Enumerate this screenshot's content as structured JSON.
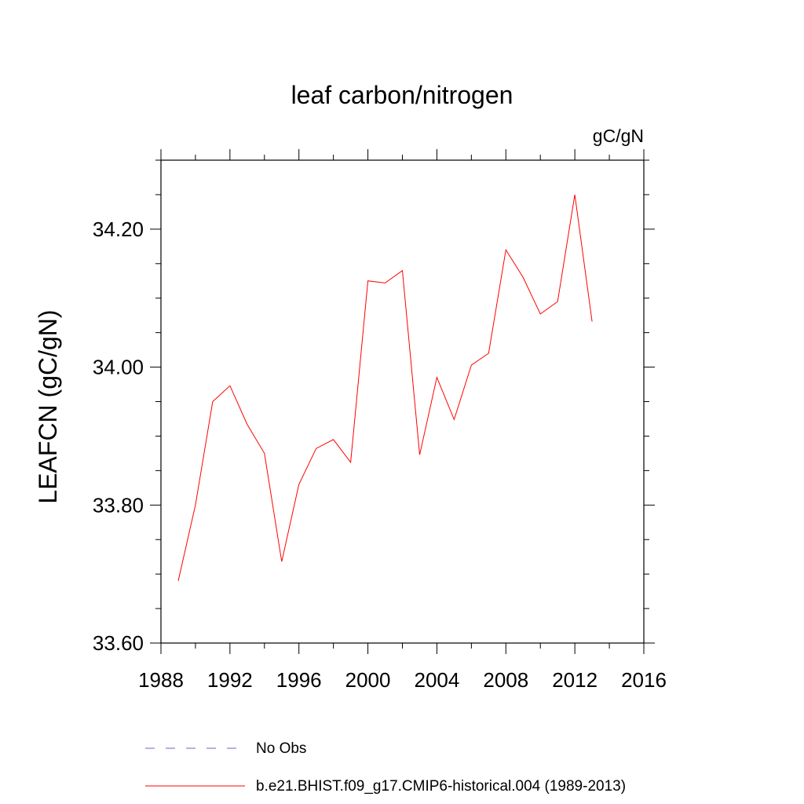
{
  "chart_data": {
    "type": "line",
    "title": "leaf carbon/nitrogen",
    "units_label": "gC/gN",
    "ylabel": "LEAFCN  (gC/gN)",
    "xlabel": "",
    "xlim": [
      1988,
      2016
    ],
    "ylim": [
      33.6,
      34.3
    ],
    "x_ticks": [
      1988,
      1992,
      1996,
      2000,
      2004,
      2008,
      2012,
      2016
    ],
    "x_tick_labels": [
      "1988",
      "1992",
      "1996",
      "2000",
      "2004",
      "2008",
      "2012",
      "2016"
    ],
    "y_ticks": [
      33.6,
      33.8,
      34.0,
      34.2
    ],
    "y_tick_labels": [
      "33.60",
      "33.80",
      "34.00",
      "34.20"
    ],
    "grid": false,
    "series": [
      {
        "name": "b.e21.BHIST.f09_g17.CMIP6-historical.004 (1989-2013)",
        "color": "#ff0000",
        "style": "solid",
        "x": [
          1989,
          1990,
          1991,
          1992,
          1993,
          1994,
          1995,
          1996,
          1997,
          1998,
          1999,
          2000,
          2001,
          2002,
          2003,
          2004,
          2005,
          2006,
          2007,
          2008,
          2009,
          2010,
          2011,
          2012,
          2013
        ],
        "values": [
          33.69,
          33.8,
          33.95,
          33.973,
          33.917,
          33.875,
          33.718,
          33.83,
          33.882,
          33.895,
          33.862,
          34.125,
          34.122,
          34.14,
          33.873,
          33.985,
          33.924,
          34.003,
          34.02,
          34.17,
          34.13,
          34.077,
          34.095,
          34.25,
          34.066
        ]
      }
    ],
    "legend": {
      "position": "bottom",
      "entries": [
        {
          "label": "No Obs",
          "color": "#6666cc",
          "style": "dashed"
        },
        {
          "label": "b.e21.BHIST.f09_g17.CMIP6-historical.004 (1989-2013)",
          "color": "#ff0000",
          "style": "solid"
        }
      ]
    }
  }
}
